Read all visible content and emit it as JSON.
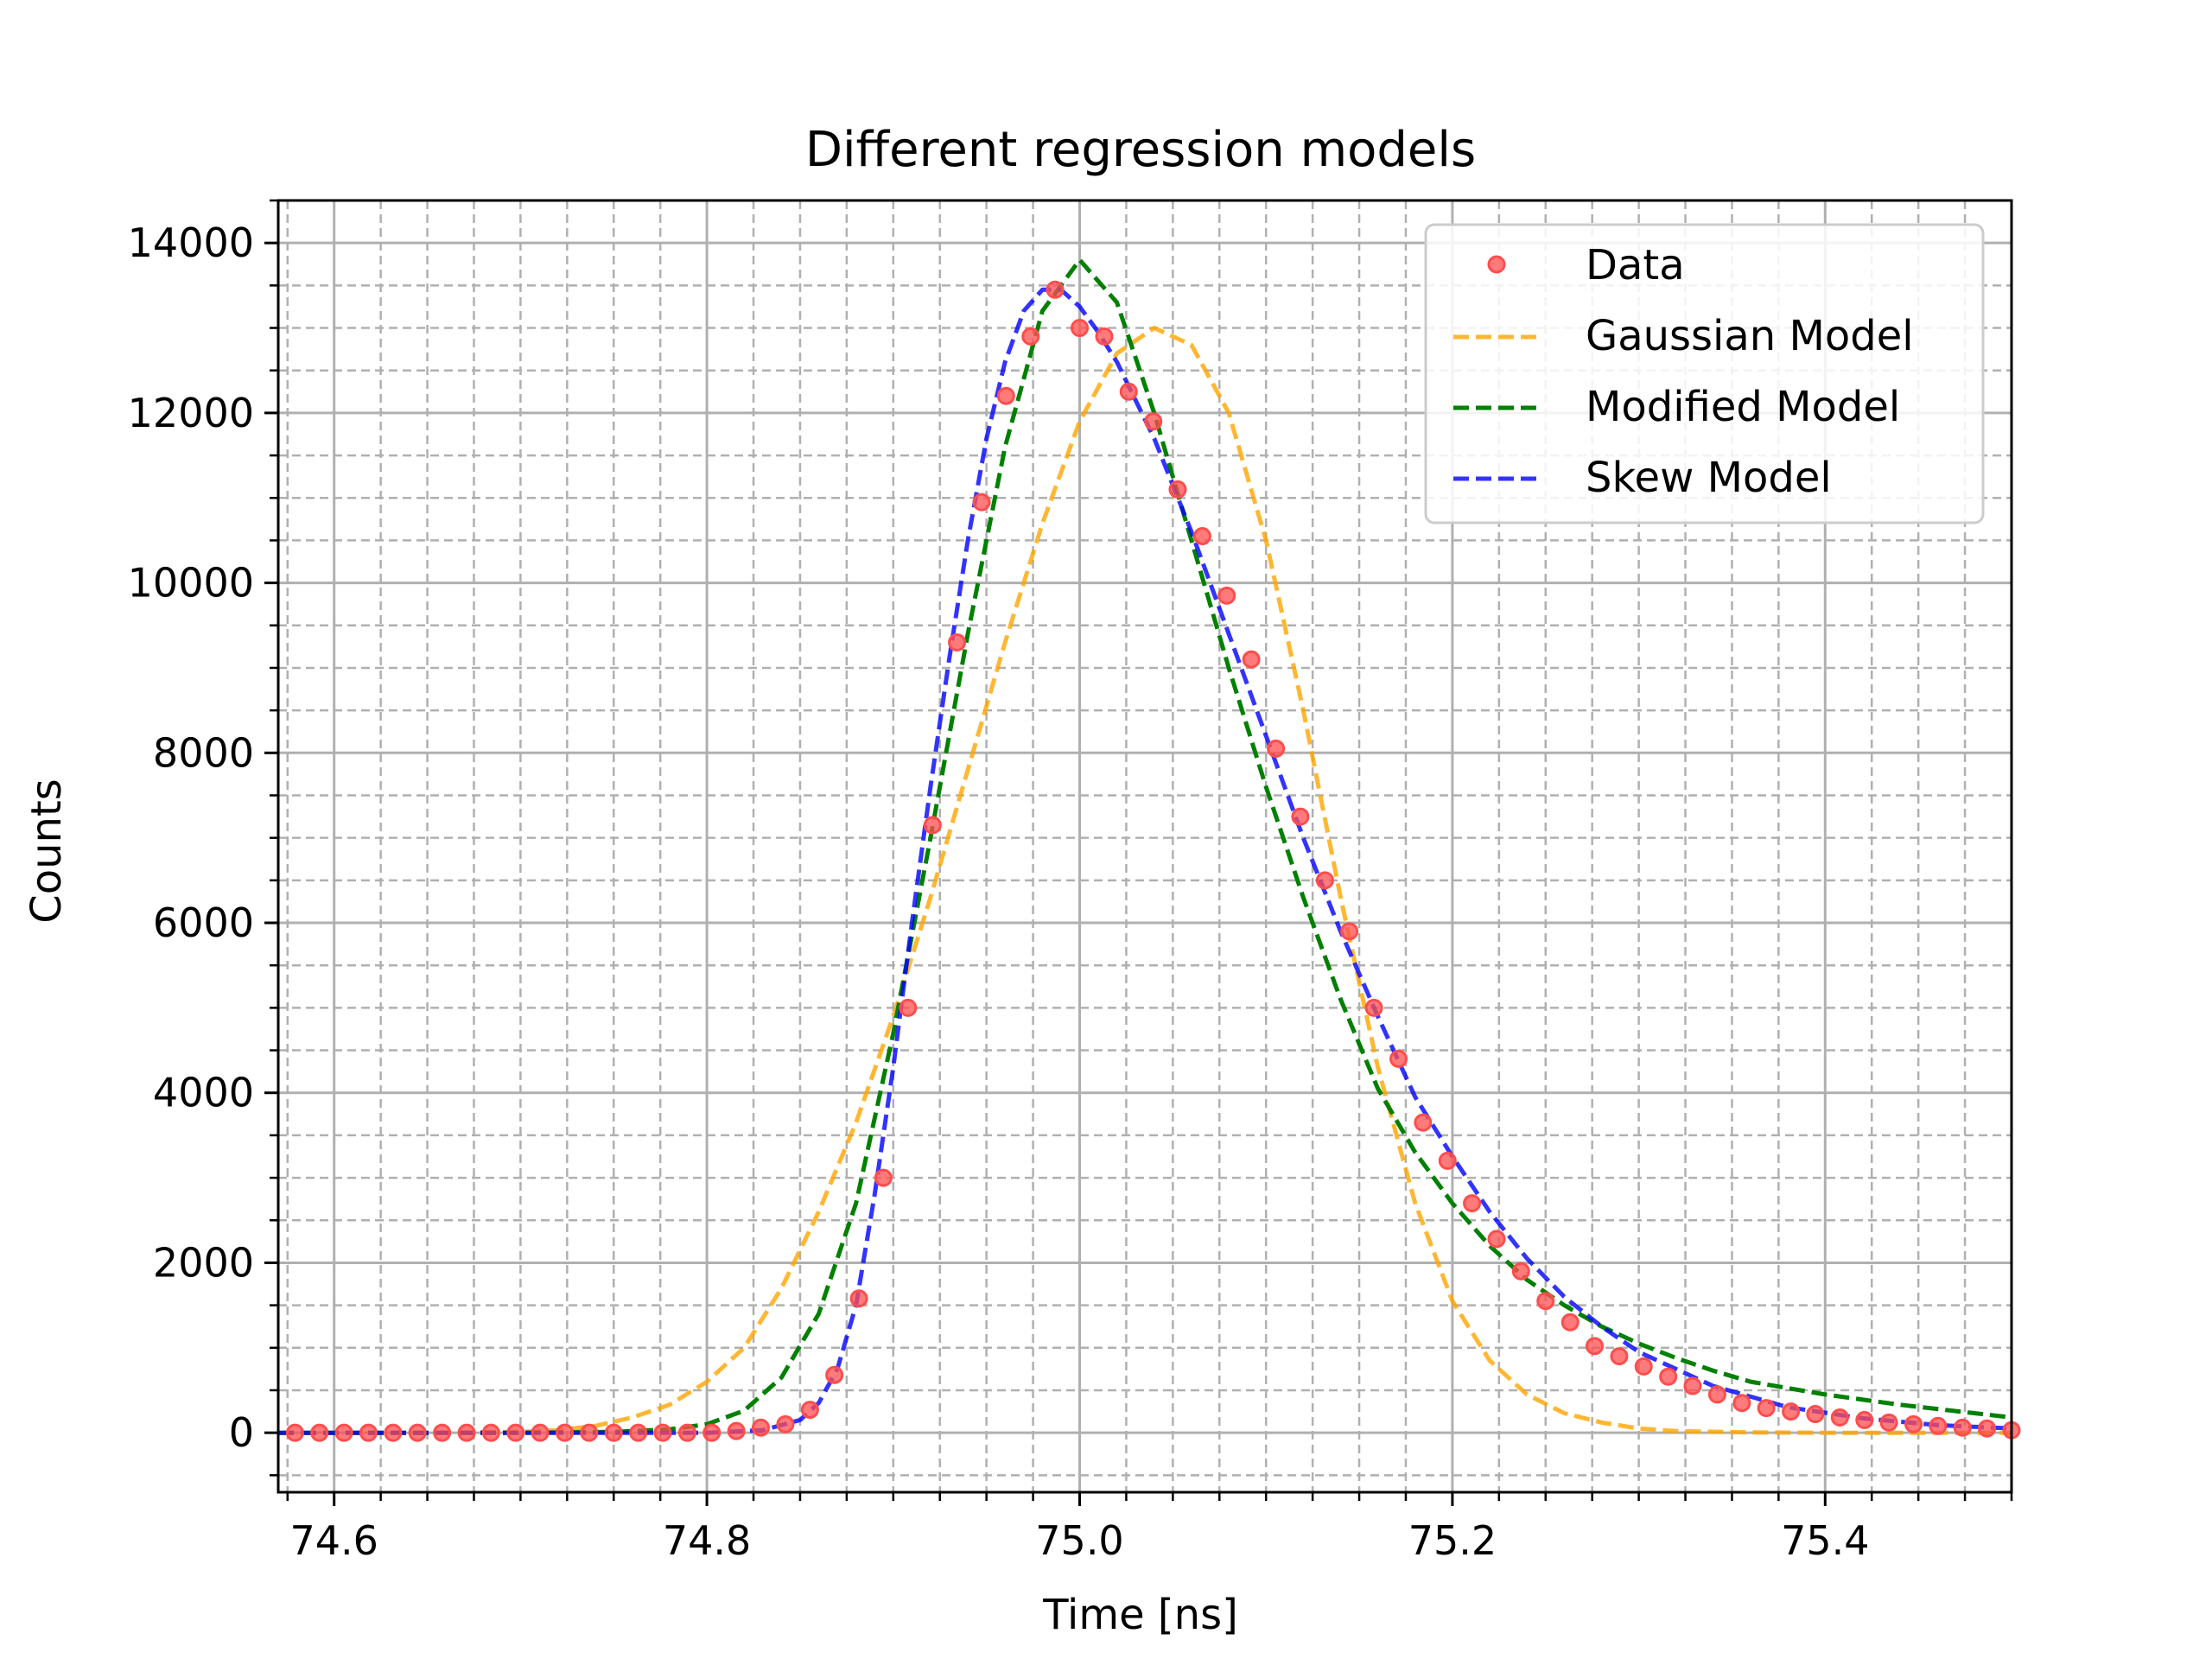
{
  "chart_data": {
    "type": "line",
    "title": "Different regression models",
    "xlabel": "Time [ns]",
    "ylabel": "Counts",
    "xlim": [
      74.57,
      75.5
    ],
    "ylim": [
      -700,
      14500
    ],
    "x_ticks": [
      "74.6",
      "74.8",
      "75.0",
      "75.2",
      "75.4"
    ],
    "y_ticks": [
      "0",
      "2000",
      "4000",
      "6000",
      "8000",
      "10000",
      "12000",
      "14000"
    ],
    "grid": "major solid, minor dashed",
    "legend_position": "top-right",
    "legend": [
      "Data",
      "Gaussian Model",
      "Modified Model",
      "Skew Model"
    ],
    "colors": {
      "data": "#ff4d4d",
      "gaussian": "#ffa500",
      "modified": "#008000",
      "skew": "#0000ff",
      "grid": "#b0b0b0"
    },
    "series": [
      {
        "name": "Data",
        "style": "markers",
        "x": [
          74.579,
          74.5921,
          74.6053,
          74.6184,
          74.6316,
          74.6447,
          74.6579,
          74.6711,
          74.6842,
          74.6974,
          74.7105,
          74.7237,
          74.7368,
          74.75,
          74.7632,
          74.7763,
          74.7895,
          74.8026,
          74.8158,
          74.8289,
          74.8421,
          74.8553,
          74.8684,
          74.8816,
          74.8947,
          74.9079,
          74.9211,
          74.9342,
          74.9474,
          74.9605,
          74.9737,
          74.9868,
          75.0,
          75.0132,
          75.0263,
          75.0395,
          75.0526,
          75.0658,
          75.0789,
          75.0921,
          75.1053,
          75.1184,
          75.1316,
          75.1447,
          75.1579,
          75.1711,
          75.1842,
          75.1974,
          75.2105,
          75.2237,
          75.2368,
          75.25,
          75.2632,
          75.2763,
          75.2895,
          75.3026,
          75.3158,
          75.3289,
          75.3421,
          75.3553,
          75.3684,
          75.3816,
          75.3947,
          75.4079,
          75.4211,
          75.4342,
          75.4474,
          75.4605,
          75.4737,
          75.4868,
          75.5
        ],
        "y": [
          0,
          0,
          0,
          0,
          0,
          0,
          0,
          0,
          0,
          0,
          0,
          0,
          0,
          0,
          0,
          0,
          0,
          0,
          20,
          60,
          100,
          270,
          680,
          1580,
          3000,
          5000,
          7150,
          9300,
          10950,
          12200,
          12900,
          13450,
          13000,
          12900,
          12250,
          11900,
          11100,
          10550,
          9850,
          9100,
          8050,
          7250,
          6500,
          5900,
          5000,
          4400,
          3650,
          3200,
          2700,
          2280,
          1900,
          1550,
          1300,
          1020,
          900,
          780,
          660,
          550,
          450,
          350,
          290,
          250,
          220,
          180,
          150,
          120,
          100,
          80,
          60,
          50,
          30
        ]
      },
      {
        "name": "Gaussian Model",
        "style": "dashed",
        "x": [
          74.57,
          74.65,
          74.7,
          74.72,
          74.74,
          74.76,
          74.78,
          74.8,
          74.82,
          74.84,
          74.86,
          74.88,
          74.9,
          74.92,
          74.94,
          74.96,
          74.98,
          75.0,
          75.02,
          75.04,
          75.06,
          75.08,
          75.1,
          75.12,
          75.14,
          75.16,
          75.18,
          75.2,
          75.22,
          75.24,
          75.26,
          75.28,
          75.3,
          75.32,
          75.36,
          75.4,
          75.5
        ],
        "y": [
          0,
          0,
          10,
          30,
          80,
          180,
          330,
          600,
          1000,
          1700,
          2600,
          3650,
          4900,
          6300,
          7800,
          9300,
          10700,
          11900,
          12700,
          13000,
          12800,
          12000,
          10500,
          8500,
          6300,
          4300,
          2700,
          1550,
          850,
          450,
          230,
          120,
          50,
          20,
          5,
          0,
          0
        ]
      },
      {
        "name": "Modified Model",
        "style": "dashed",
        "x": [
          74.57,
          74.7,
          74.75,
          74.78,
          74.8,
          74.82,
          74.84,
          74.86,
          74.88,
          74.9,
          74.92,
          74.94,
          74.96,
          74.98,
          75.0,
          75.02,
          75.04,
          75.06,
          75.08,
          75.1,
          75.12,
          75.14,
          75.16,
          75.18,
          75.2,
          75.22,
          75.24,
          75.26,
          75.28,
          75.3,
          75.32,
          75.34,
          75.36,
          75.4,
          75.44,
          75.48,
          75.5
        ],
        "y": [
          0,
          0,
          10,
          40,
          100,
          260,
          650,
          1400,
          2700,
          4700,
          7000,
          9400,
          11600,
          13200,
          13800,
          13300,
          12000,
          10500,
          9000,
          7600,
          6300,
          5100,
          4050,
          3300,
          2700,
          2200,
          1800,
          1500,
          1250,
          1050,
          880,
          730,
          600,
          450,
          330,
          230,
          180
        ]
      },
      {
        "name": "Skew Model",
        "style": "dashed",
        "x": [
          74.57,
          74.8,
          74.83,
          74.85,
          74.86,
          74.87,
          74.88,
          74.89,
          74.9,
          74.91,
          74.92,
          74.93,
          74.94,
          74.95,
          74.96,
          74.97,
          74.98,
          74.99,
          75.0,
          75.01,
          75.02,
          75.04,
          75.06,
          75.08,
          75.1,
          75.12,
          75.14,
          75.16,
          75.18,
          75.2,
          75.22,
          75.24,
          75.26,
          75.28,
          75.3,
          75.34,
          75.38,
          75.42,
          75.46,
          75.5
        ],
        "y": [
          0,
          0,
          30,
          150,
          350,
          750,
          1500,
          2800,
          4300,
          6000,
          7600,
          9100,
          10500,
          11700,
          12600,
          13200,
          13450,
          13450,
          13250,
          12950,
          12600,
          11700,
          10600,
          9400,
          8200,
          7000,
          5900,
          4900,
          3950,
          3250,
          2600,
          2050,
          1600,
          1250,
          950,
          550,
          300,
          170,
          90,
          50
        ]
      }
    ]
  }
}
